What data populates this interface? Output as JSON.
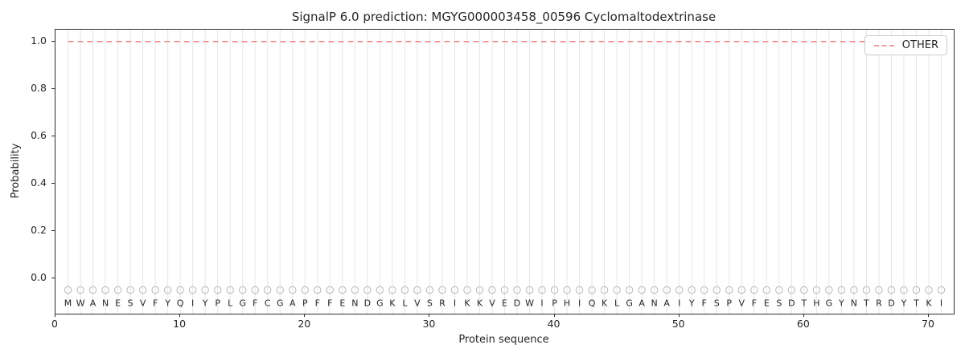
{
  "figure": {
    "title": "SignalP 6.0 prediction: MGYG000003458_00596 Cyclomaltodextrinase",
    "xlabel": "Protein sequence",
    "ylabel": "Probability"
  },
  "legend": {
    "entries": [
      {
        "label": "OTHER",
        "color": "#f08080",
        "style": "dashed"
      }
    ]
  },
  "chart_data": {
    "type": "line",
    "title": "SignalP 6.0 prediction: MGYG000003458_00596 Cyclomaltodextrinase",
    "xlabel": "Protein sequence",
    "ylabel": "Probability",
    "ylim": [
      -0.15,
      1.05
    ],
    "x_ticks": [
      0,
      10,
      20,
      30,
      40,
      50,
      60,
      70
    ],
    "y_ticks": [
      0.0,
      0.2,
      0.4,
      0.6,
      0.8,
      1.0
    ],
    "grid": "vertical gridline at every residue position",
    "grid_color": "#e6e6e6",
    "legend_position": "upper-right",
    "series": [
      {
        "name": "OTHER",
        "color": "#f08080",
        "line_style": "dashed",
        "y_constant": 1.0,
        "note": "constant probability 1.0 across the whole sequence"
      }
    ],
    "sequence": [
      "M",
      "W",
      "A",
      "N",
      "E",
      "S",
      "V",
      "F",
      "Y",
      "Q",
      "I",
      "Y",
      "P",
      "L",
      "G",
      "F",
      "C",
      "G",
      "A",
      "P",
      "F",
      "F",
      "E",
      "N",
      "D",
      "G",
      "K",
      "L",
      "V",
      "S",
      "R",
      "I",
      "K",
      "K",
      "V",
      "E",
      "D",
      "W",
      "I",
      "P",
      "H",
      "I",
      "Q",
      "K",
      "L",
      "G",
      "A",
      "N",
      "A",
      "I",
      "Y",
      "F",
      "S",
      "P",
      "V",
      "F",
      "E",
      "S",
      "D",
      "T",
      "H",
      "G",
      "Y",
      "N",
      "T",
      "R",
      "D",
      "Y",
      "T",
      "K",
      "I"
    ],
    "sequence_marker": {
      "shape": "open-circle",
      "y": -0.05,
      "color": "#b8b8b8"
    },
    "sequence_label_y": -0.105,
    "spine_color": "#2e2e2e"
  }
}
